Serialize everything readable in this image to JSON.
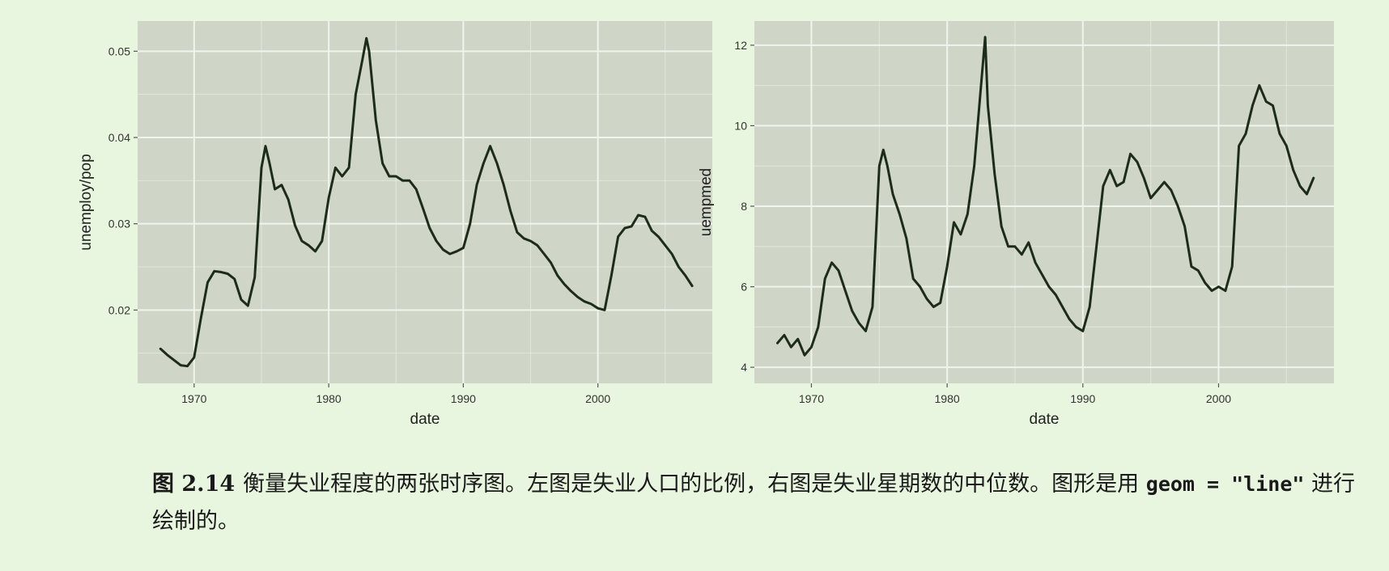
{
  "colors": {
    "page_background": "#e8f6df",
    "panel_background": "#cfd6c8",
    "grid": "#f0f4ec",
    "line": "#1d2b1a"
  },
  "chart_data": [
    {
      "type": "line",
      "xlabel": "date",
      "ylabel": "unemploy/pop",
      "xlim": [
        1965.8,
        2008.5
      ],
      "ylim": [
        0.0115,
        0.0535
      ],
      "xticks": [
        1970,
        1980,
        1990,
        2000
      ],
      "xtick_labels": [
        "1970",
        "1980",
        "1990",
        "2000"
      ],
      "yticks": [
        0.02,
        0.03,
        0.04,
        0.05
      ],
      "ytick_labels": [
        "0.02",
        "0.03",
        "0.04",
        "0.05"
      ],
      "grid": true,
      "x": [
        1967.5,
        1968.0,
        1968.5,
        1969.0,
        1969.5,
        1970.0,
        1970.5,
        1971.0,
        1971.5,
        1972.0,
        1972.5,
        1973.0,
        1973.5,
        1974.0,
        1974.5,
        1975.0,
        1975.3,
        1975.6,
        1976.0,
        1976.5,
        1977.0,
        1977.5,
        1978.0,
        1978.5,
        1979.0,
        1979.5,
        1980.0,
        1980.5,
        1981.0,
        1981.5,
        1982.0,
        1982.5,
        1982.8,
        1983.0,
        1983.5,
        1984.0,
        1984.5,
        1985.0,
        1985.5,
        1986.0,
        1986.5,
        1987.0,
        1987.5,
        1988.0,
        1988.5,
        1989.0,
        1989.5,
        1990.0,
        1990.5,
        1991.0,
        1991.5,
        1992.0,
        1992.5,
        1993.0,
        1993.5,
        1994.0,
        1994.5,
        1995.0,
        1995.5,
        1996.0,
        1996.5,
        1997.0,
        1997.5,
        1998.0,
        1998.5,
        1999.0,
        1999.5,
        2000.0,
        2000.5,
        2001.0,
        2001.5,
        2002.0,
        2002.5,
        2003.0,
        2003.5,
        2004.0,
        2004.5,
        2005.0,
        2005.5,
        2006.0,
        2006.5,
        2007.0
      ],
      "y": [
        0.0155,
        0.0148,
        0.0142,
        0.0136,
        0.0135,
        0.0145,
        0.019,
        0.0232,
        0.0245,
        0.0244,
        0.0242,
        0.0236,
        0.0212,
        0.0205,
        0.0238,
        0.0365,
        0.039,
        0.037,
        0.034,
        0.0345,
        0.0328,
        0.0298,
        0.028,
        0.0275,
        0.0268,
        0.028,
        0.033,
        0.0365,
        0.0355,
        0.0365,
        0.045,
        0.049,
        0.0515,
        0.05,
        0.042,
        0.037,
        0.0355,
        0.0355,
        0.035,
        0.035,
        0.034,
        0.0318,
        0.0295,
        0.028,
        0.027,
        0.0265,
        0.0268,
        0.0272,
        0.03,
        0.0345,
        0.037,
        0.039,
        0.037,
        0.0345,
        0.0315,
        0.029,
        0.0283,
        0.028,
        0.0275,
        0.0265,
        0.0255,
        0.024,
        0.023,
        0.0222,
        0.0215,
        0.021,
        0.0207,
        0.0202,
        0.02,
        0.024,
        0.0285,
        0.0295,
        0.0297,
        0.031,
        0.0308,
        0.0292,
        0.0285,
        0.0275,
        0.0265,
        0.025,
        0.024,
        0.0228
      ]
    },
    {
      "type": "line",
      "xlabel": "date",
      "ylabel": "uempmed",
      "xlim": [
        1965.8,
        2008.5
      ],
      "ylim": [
        3.6,
        12.6
      ],
      "xticks": [
        1970,
        1980,
        1990,
        2000
      ],
      "xtick_labels": [
        "1970",
        "1980",
        "1990",
        "2000"
      ],
      "yticks": [
        4,
        6,
        8,
        10,
        12
      ],
      "ytick_labels": [
        "4",
        "6",
        "8",
        "10",
        "12"
      ],
      "grid": true,
      "x": [
        1967.5,
        1968.0,
        1968.5,
        1969.0,
        1969.5,
        1970.0,
        1970.5,
        1971.0,
        1971.5,
        1972.0,
        1972.5,
        1973.0,
        1973.5,
        1974.0,
        1974.5,
        1975.0,
        1975.3,
        1975.6,
        1976.0,
        1976.5,
        1977.0,
        1977.5,
        1978.0,
        1978.5,
        1979.0,
        1979.5,
        1980.0,
        1980.5,
        1981.0,
        1981.5,
        1982.0,
        1982.5,
        1982.8,
        1983.0,
        1983.5,
        1984.0,
        1984.5,
        1985.0,
        1985.5,
        1986.0,
        1986.5,
        1987.0,
        1987.5,
        1988.0,
        1988.5,
        1989.0,
        1989.5,
        1990.0,
        1990.5,
        1991.0,
        1991.5,
        1992.0,
        1992.5,
        1993.0,
        1993.5,
        1994.0,
        1994.5,
        1995.0,
        1995.5,
        1996.0,
        1996.5,
        1997.0,
        1997.5,
        1998.0,
        1998.5,
        1999.0,
        1999.5,
        2000.0,
        2000.5,
        2001.0,
        2001.5,
        2002.0,
        2002.5,
        2003.0,
        2003.5,
        2004.0,
        2004.5,
        2005.0,
        2005.5,
        2006.0,
        2006.5,
        2007.0
      ],
      "y": [
        4.6,
        4.8,
        4.5,
        4.7,
        4.3,
        4.5,
        5.0,
        6.2,
        6.6,
        6.4,
        5.9,
        5.4,
        5.1,
        4.9,
        5.5,
        9.0,
        9.4,
        9.0,
        8.3,
        7.8,
        7.2,
        6.2,
        6.0,
        5.7,
        5.5,
        5.6,
        6.5,
        7.6,
        7.3,
        7.8,
        9.0,
        11.0,
        12.2,
        10.5,
        8.8,
        7.5,
        7.0,
        7.0,
        6.8,
        7.1,
        6.6,
        6.3,
        6.0,
        5.8,
        5.5,
        5.2,
        5.0,
        4.9,
        5.5,
        7.0,
        8.5,
        8.9,
        8.5,
        8.6,
        9.3,
        9.1,
        8.7,
        8.2,
        8.4,
        8.6,
        8.4,
        8.0,
        7.5,
        6.5,
        6.4,
        6.1,
        5.9,
        6.0,
        5.9,
        6.5,
        9.5,
        9.8,
        10.5,
        11.0,
        10.6,
        10.5,
        9.8,
        9.5,
        8.9,
        8.5,
        8.3,
        8.7
      ]
    }
  ],
  "caption": {
    "label": "图 2.14",
    "text_before_code": "衡量失业程度的两张时序图。左图是失业人口的比例，右图是失业星期数的中位数。图形是用",
    "code": "geom = \"line\"",
    "text_after_code": "进行绘制的。"
  }
}
